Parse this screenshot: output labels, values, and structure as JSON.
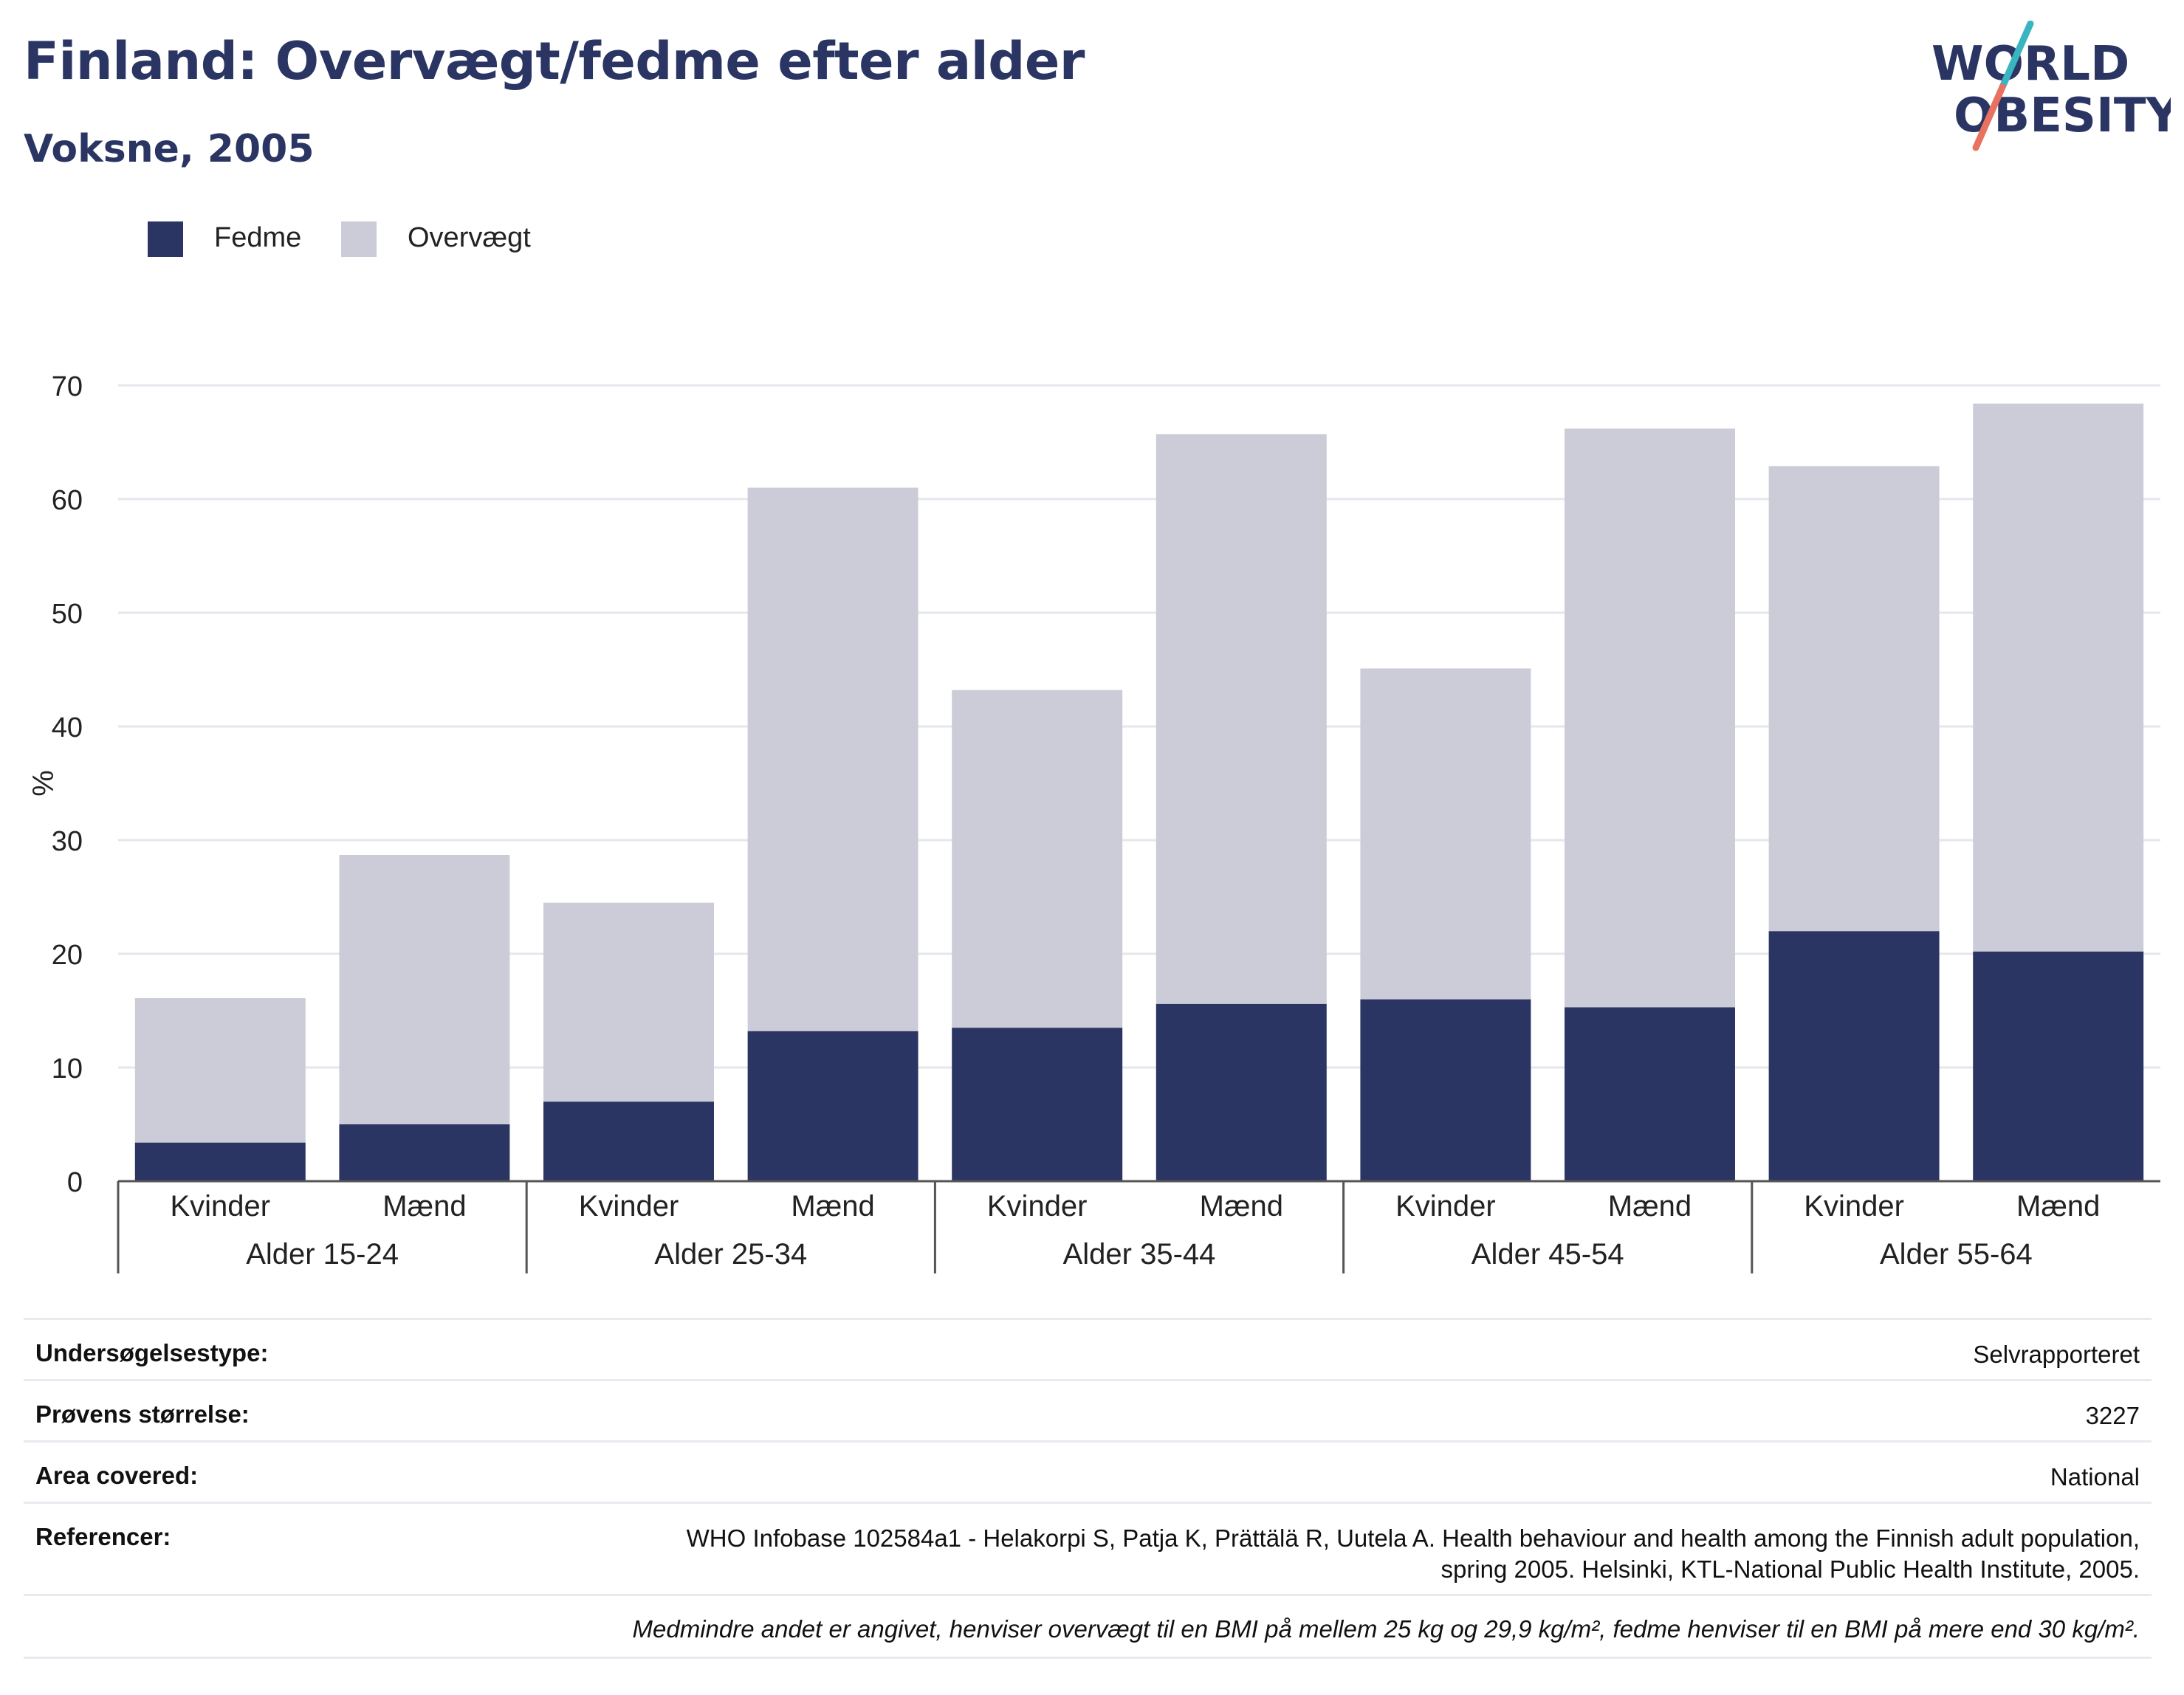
{
  "header": {
    "title": "Finland: Overvægt/fedme efter alder",
    "subtitle": "Voksne, 2005"
  },
  "logo": {
    "line1": "WORLD",
    "line2": "OBESITY",
    "colors": {
      "text": "#2a3563",
      "slash_top": "#3bb4c1",
      "slash_bottom": "#e8715f"
    }
  },
  "colors": {
    "fedme": "#2a3563",
    "overvaegt": "#cbccd8",
    "gridline": "#e6e7ee",
    "axis": "#555555"
  },
  "chart_data": {
    "type": "bar",
    "stacked": true,
    "ylabel": "%",
    "ylim": [
      0,
      70
    ],
    "yticks": [
      0,
      10,
      20,
      30,
      40,
      50,
      60,
      70
    ],
    "grid": true,
    "legend_position": "top-left",
    "categories": [
      "Kvinder",
      "Mænd",
      "Kvinder",
      "Mænd",
      "Kvinder",
      "Mænd",
      "Kvinder",
      "Mænd",
      "Kvinder",
      "Mænd"
    ],
    "groups": [
      "Alder 15-24",
      "Alder 25-34",
      "Alder 35-44",
      "Alder 45-54",
      "Alder 55-64"
    ],
    "series": [
      {
        "name": "Fedme",
        "values": [
          3.4,
          5.0,
          7.0,
          13.2,
          13.5,
          15.6,
          16.0,
          15.3,
          22.0,
          20.2
        ]
      },
      {
        "name": "Overvægt",
        "values": [
          12.7,
          23.7,
          17.5,
          47.8,
          29.7,
          50.1,
          29.1,
          50.9,
          40.9,
          48.2
        ]
      }
    ]
  },
  "info": {
    "rows": [
      {
        "label": "Undersøgelsestype:",
        "value": "Selvrapporteret"
      },
      {
        "label": "Prøvens størrelse:",
        "value": "3227"
      },
      {
        "label": "Area covered:",
        "value": "National"
      },
      {
        "label": "Referencer:",
        "value_line1": "WHO Infobase 102584a1 - Helakorpi S, Patja K, Prättälä R, Uutela A. Health behaviour and health among the Finnish adult population,",
        "value_line2": "spring 2005. Helsinki, KTL-National Public Health Institute, 2005."
      }
    ],
    "note": "Medmindre andet er angivet, henviser overvægt til en BMI på mellem 25 kg og 29,9 kg/m², fedme henviser til en BMI på mere end 30 kg/m²."
  }
}
